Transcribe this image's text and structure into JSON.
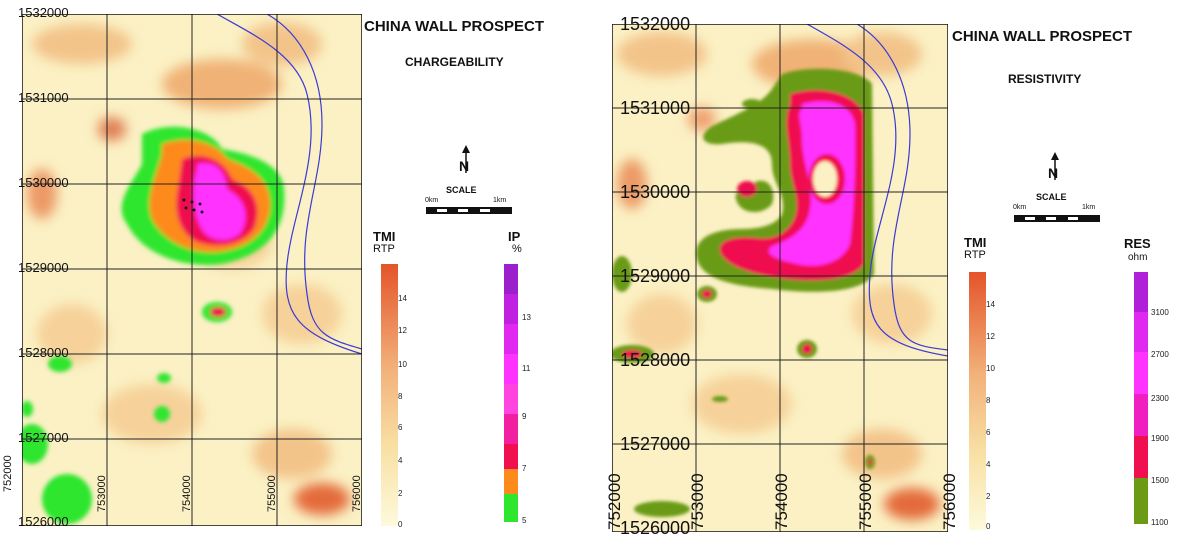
{
  "left": {
    "title": "CHINA WALL PROSPECT",
    "subtitle": "CHARGEABILITY",
    "northbar": "SCALE",
    "scale_labels": [
      "0km",
      "1km"
    ],
    "north": "N",
    "y_ticks": [
      "1532000",
      "1531000",
      "1530000",
      "1529000",
      "1528000",
      "1527000",
      "1526000"
    ],
    "x_ticks": [
      "752000",
      "753000",
      "754000",
      "755000",
      "756000"
    ],
    "legend_tmi": {
      "title": "TMI",
      "unit": "RTP",
      "values": [
        "0",
        "2",
        "4",
        "6",
        "8",
        "10",
        "12",
        "14"
      ]
    },
    "legend_ip": {
      "title": "IP",
      "unit": "%",
      "values": [
        "5",
        "7",
        "9",
        "11",
        "13"
      ]
    }
  },
  "right": {
    "title": "CHINA WALL PROSPECT",
    "subtitle": "RESISTIVITY",
    "northbar": "SCALE",
    "scale_labels": [
      "0km",
      "1km"
    ],
    "north": "N",
    "y_ticks": [
      "1532000",
      "1531000",
      "1530000",
      "1529000",
      "1528000",
      "1527000",
      "1526000"
    ],
    "x_ticks": [
      "752000",
      "753000",
      "754000",
      "755000",
      "756000"
    ],
    "legend_tmi": {
      "title": "TMI",
      "unit": "RTP",
      "values": [
        "0",
        "2",
        "4",
        "6",
        "8",
        "10",
        "12",
        "14"
      ]
    },
    "legend_res": {
      "title": "RES",
      "unit": "ohm",
      "values": [
        "1100",
        "1500",
        "1900",
        "2300",
        "2700",
        "3100"
      ]
    }
  },
  "colors": {
    "tmi_low": "#fbf5c8",
    "tmi_high": "#e4602f",
    "ip_green": "#2ee62e",
    "ip_magenta": "#ff33ff",
    "res_green": "#6b9b14",
    "res_red": "#f01050",
    "contour_blue": "#3a3ad8"
  }
}
